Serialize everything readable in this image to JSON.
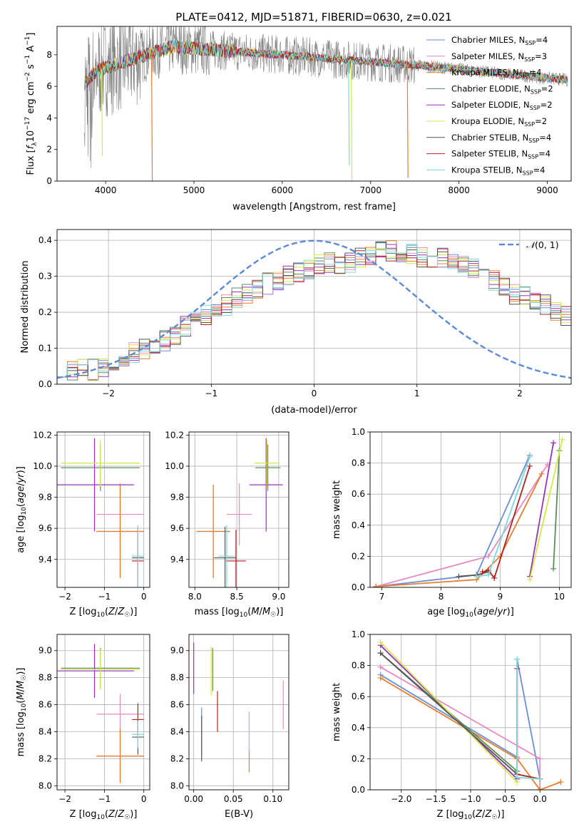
{
  "figure": {
    "title": "PLATE=0412, MJD=51871, FIBERID=0630, z=0.021",
    "model_colors": {
      "Chabrier MILES": "#6a8fd6",
      "Salpeter MILES": "#e78ac3",
      "Kroupa MILES": "#e87d2c",
      "Chabrier ELODIE": "#5b8f5b",
      "Salpeter ELODIE": "#9933bb",
      "Kroupa ELODIE": "#d4e84a",
      "Chabrier STELIB": "#555555",
      "Salpeter STELIB": "#b22222",
      "Kroupa STELIB": "#7fd8d8"
    },
    "data_color": "#808080"
  },
  "chart_data": [
    {
      "id": "spectrum",
      "type": "line",
      "xlabel": "wavelength [Angstrom, rest frame]",
      "ylabel": "Flux [f_λ 10^-17 erg cm^-2 s^-1 A^-1]",
      "xlim": [
        3450,
        9270
      ],
      "ylim": [
        0,
        9.8
      ],
      "xticks": [
        4000,
        5000,
        6000,
        7000,
        8000,
        9000
      ],
      "yticks": [
        0,
        2,
        4,
        6,
        8
      ],
      "grid": false,
      "legend_position": "top-right",
      "legend": [
        {
          "text": "Chabrier MILES, N",
          "sub": "SSP",
          "suffix": "=4"
        },
        {
          "text": "Salpeter MILES, N",
          "sub": "SSP",
          "suffix": "=3"
        },
        {
          "text": "Kroupa MILES, N",
          "sub": "SSP",
          "suffix": "=4"
        },
        {
          "text": "Chabrier ELODIE, N",
          "sub": "SSP",
          "suffix": "=2"
        },
        {
          "text": "Salpeter ELODIE, N",
          "sub": "SSP",
          "suffix": "=2"
        },
        {
          "text": "Kroupa ELODIE, N",
          "sub": "SSP",
          "suffix": "=2"
        },
        {
          "text": "Chabrier STELIB, N",
          "sub": "SSP",
          "suffix": "=4"
        },
        {
          "text": "Salpeter STELIB, N",
          "sub": "SSP",
          "suffix": "=4"
        },
        {
          "text": "Kroupa STELIB, N",
          "sub": "SSP",
          "suffix": "=4"
        }
      ],
      "data_range": [
        3760,
        9230
      ],
      "model_dips": [
        {
          "model": "Kroupa MILES",
          "x": 4520,
          "y": 0
        },
        {
          "model": "Kroupa STELIB",
          "x": 6750,
          "y": 1.0
        },
        {
          "model": "Kroupa ELODIE",
          "x": 6780,
          "y": 0
        },
        {
          "model": "Kroupa MILES",
          "x": 7415,
          "y": 0.2
        },
        {
          "model": "Kroupa ELODIE",
          "x": 3955,
          "y": 1.6
        }
      ]
    },
    {
      "id": "residuals",
      "type": "step",
      "xlabel": "(data-model)/error",
      "ylabel": "Normed distribution",
      "xlim": [
        -2.5,
        2.5
      ],
      "ylim": [
        0,
        0.43
      ],
      "xticks": [
        -2,
        -1,
        0,
        1,
        2
      ],
      "yticks": [
        0.0,
        0.1,
        0.2,
        0.3,
        0.4
      ],
      "grid": true,
      "legend_position": "top-right",
      "legend": "N(0, 1)",
      "bin_width": 0.1,
      "bin_start": -2.5,
      "base_hist": [
        0.05,
        0.04,
        0.04,
        0.04,
        0.05,
        0.06,
        0.08,
        0.09,
        0.1,
        0.11,
        0.12,
        0.14,
        0.16,
        0.18,
        0.19,
        0.21,
        0.22,
        0.24,
        0.25,
        0.26,
        0.28,
        0.29,
        0.3,
        0.31,
        0.32,
        0.33,
        0.34,
        0.33,
        0.34,
        0.35,
        0.36,
        0.37,
        0.37,
        0.37,
        0.36,
        0.35,
        0.35,
        0.35,
        0.34,
        0.33,
        0.32,
        0.31,
        0.29,
        0.27,
        0.25,
        0.25,
        0.23,
        0.22,
        0.2,
        0.19,
        0.17,
        0.16,
        0.14,
        0.12,
        0.1,
        0.09,
        0.08,
        0.07,
        0.06,
        0.05
      ]
    },
    {
      "id": "age-vs-Z",
      "type": "errorbar",
      "xlabel": "Z [log10(Z/Z☉)]",
      "ylabel": "age  [log10(age/yr)]",
      "xlim": [
        -2.2,
        0.15
      ],
      "ylim": [
        9.22,
        10.22
      ],
      "xticks": [
        -2,
        -1,
        0
      ],
      "yticks": [
        9.4,
        9.6,
        9.8,
        10.0,
        10.2
      ],
      "grid": true,
      "points": [
        {
          "model": "Chabrier MILES",
          "x": -0.6,
          "xerr": 0.6,
          "y": 9.58,
          "yerr": 0.3
        },
        {
          "model": "Salpeter MILES",
          "x": -0.6,
          "xerr": 0.6,
          "y": 9.69,
          "yerr": 0.2
        },
        {
          "model": "Kroupa MILES",
          "x": -0.6,
          "xerr": 0.6,
          "y": 9.58,
          "yerr": 0.3
        },
        {
          "model": "Chabrier ELODIE",
          "x": -1.1,
          "xerr": 1.0,
          "y": 9.99,
          "yerr": 0.15
        },
        {
          "model": "Salpeter ELODIE",
          "x": -1.25,
          "xerr": 1.0,
          "y": 9.88,
          "yerr": 0.3
        },
        {
          "model": "Kroupa ELODIE",
          "x": -1.1,
          "xerr": 1.0,
          "y": 10.02,
          "yerr": 0.15
        },
        {
          "model": "Chabrier STELIB",
          "x": -0.15,
          "xerr": 0.15,
          "y": 9.41,
          "yerr": 0.2
        },
        {
          "model": "Salpeter STELIB",
          "x": -0.15,
          "xerr": 0.15,
          "y": 9.39,
          "yerr": 0.2
        },
        {
          "model": "Kroupa STELIB",
          "x": -0.15,
          "xerr": 0.15,
          "y": 9.42,
          "yerr": 0.2
        }
      ]
    },
    {
      "id": "age-vs-mass",
      "type": "errorbar",
      "xlabel": "mass [log10(M/M☉)]",
      "ylabel": "",
      "xlim": [
        7.93,
        9.12
      ],
      "ylim": [
        9.22,
        10.22
      ],
      "xticks": [
        8.0,
        8.5,
        9.0
      ],
      "yticks": [
        9.4,
        9.6,
        9.8,
        10.0,
        10.2
      ],
      "grid": true,
      "points": [
        {
          "model": "Chabrier MILES",
          "x": 8.22,
          "xerr": 0.2,
          "y": 9.58,
          "yerr": 0.3
        },
        {
          "model": "Salpeter MILES",
          "x": 8.53,
          "xerr": 0.15,
          "y": 9.69,
          "yerr": 0.2
        },
        {
          "model": "Kroupa MILES",
          "x": 8.22,
          "xerr": 0.2,
          "y": 9.58,
          "yerr": 0.3
        },
        {
          "model": "Chabrier ELODIE",
          "x": 8.87,
          "xerr": 0.15,
          "y": 9.99,
          "yerr": 0.15
        },
        {
          "model": "Salpeter ELODIE",
          "x": 8.85,
          "xerr": 0.2,
          "y": 9.88,
          "yerr": 0.3
        },
        {
          "model": "Kroupa ELODIE",
          "x": 8.86,
          "xerr": 0.15,
          "y": 10.02,
          "yerr": 0.15
        },
        {
          "model": "Chabrier STELIB",
          "x": 8.36,
          "xerr": 0.13,
          "y": 9.41,
          "yerr": 0.2
        },
        {
          "model": "Salpeter STELIB",
          "x": 8.49,
          "xerr": 0.12,
          "y": 9.39,
          "yerr": 0.2
        },
        {
          "model": "Kroupa STELIB",
          "x": 8.38,
          "xerr": 0.1,
          "y": 9.42,
          "yerr": 0.2
        }
      ]
    },
    {
      "id": "mass-weight-vs-age",
      "type": "line",
      "xlabel": "age  [log10(age/yr)]",
      "ylabel": "mass weight",
      "xlim": [
        6.8,
        10.2
      ],
      "ylim": [
        0,
        1.0
      ],
      "xticks": [
        7,
        8,
        9,
        10
      ],
      "yticks": [
        0.0,
        0.2,
        0.4,
        0.6,
        0.8,
        1.0
      ],
      "grid": true,
      "series": [
        {
          "model": "Chabrier MILES",
          "x": [
            6.9,
            8.6,
            9.5
          ],
          "y": [
            0.005,
            0.08,
            0.85
          ]
        },
        {
          "model": "Salpeter MILES",
          "x": [
            6.9,
            8.8,
            9.8
          ],
          "y": [
            0.005,
            0.2,
            0.79
          ]
        },
        {
          "model": "Kroupa MILES",
          "x": [
            6.9,
            8.6,
            9.0,
            9.7
          ],
          "y": [
            0.005,
            0.05,
            0.2,
            0.73
          ]
        },
        {
          "model": "Chabrier ELODIE",
          "x": [
            9.9,
            10.0
          ],
          "y": [
            0.12,
            0.88
          ]
        },
        {
          "model": "Salpeter ELODIE",
          "x": [
            9.5,
            9.9
          ],
          "y": [
            0.07,
            0.93
          ]
        },
        {
          "model": "Kroupa ELODIE",
          "x": [
            9.5,
            10.05
          ],
          "y": [
            0.05,
            0.95
          ]
        },
        {
          "model": "Chabrier STELIB",
          "x": [
            8.3,
            8.6,
            8.8
          ],
          "y": [
            0.07,
            0.08,
            0.1
          ]
        },
        {
          "model": "Salpeter STELIB",
          "x": [
            8.7,
            8.8,
            8.9,
            9.5
          ],
          "y": [
            0.1,
            0.11,
            0.06,
            0.78
          ]
        },
        {
          "model": "Kroupa STELIB",
          "x": [
            8.6,
            8.8,
            9.5
          ],
          "y": [
            0.07,
            0.08,
            0.84
          ]
        }
      ]
    },
    {
      "id": "mass-vs-Z",
      "type": "errorbar",
      "xlabel": "Z [log10(Z/Z☉)]",
      "ylabel": "mass [log10(M/M☉)]",
      "xlim": [
        -2.2,
        0.15
      ],
      "ylim": [
        7.97,
        9.12
      ],
      "xticks": [
        -2,
        -1,
        0
      ],
      "yticks": [
        8.0,
        8.2,
        8.4,
        8.6,
        8.8,
        9.0
      ],
      "grid": true,
      "points": [
        {
          "model": "Chabrier MILES",
          "x": -0.6,
          "xerr": 0.6,
          "y": 8.22,
          "yerr": 0.2
        },
        {
          "model": "Salpeter MILES",
          "x": -0.6,
          "xerr": 0.6,
          "y": 8.53,
          "yerr": 0.15
        },
        {
          "model": "Kroupa MILES",
          "x": -0.6,
          "xerr": 0.6,
          "y": 8.22,
          "yerr": 0.2
        },
        {
          "model": "Chabrier ELODIE",
          "x": -1.1,
          "xerr": 1.0,
          "y": 8.87,
          "yerr": 0.15
        },
        {
          "model": "Salpeter ELODIE",
          "x": -1.25,
          "xerr": 1.0,
          "y": 8.85,
          "yerr": 0.2
        },
        {
          "model": "Kroupa ELODIE",
          "x": -1.1,
          "xerr": 1.0,
          "y": 8.86,
          "yerr": 0.15
        },
        {
          "model": "Chabrier STELIB",
          "x": -0.15,
          "xerr": 0.15,
          "y": 8.36,
          "yerr": 0.13
        },
        {
          "model": "Salpeter STELIB",
          "x": -0.15,
          "xerr": 0.15,
          "y": 8.49,
          "yerr": 0.12
        },
        {
          "model": "Kroupa STELIB",
          "x": -0.15,
          "xerr": 0.15,
          "y": 8.38,
          "yerr": 0.1
        }
      ]
    },
    {
      "id": "mass-vs-ebv",
      "type": "errorbar",
      "xlabel": "E(B-V)",
      "ylabel": "",
      "xlim": [
        -0.006,
        0.12
      ],
      "ylim": [
        7.97,
        9.12
      ],
      "xticks": [
        0.0,
        0.05,
        0.1
      ],
      "yticks": [
        8.0,
        8.2,
        8.4,
        8.6,
        8.8,
        9.0
      ],
      "grid": true,
      "points": [
        {
          "model": "Chabrier MILES",
          "x": 0.01,
          "xerr": 0,
          "y": 8.4,
          "yerr": 0.18
        },
        {
          "model": "Salpeter MILES",
          "x": 0.113,
          "xerr": 0,
          "y": 8.6,
          "yerr": 0.18
        },
        {
          "model": "Kroupa MILES",
          "x": 0.07,
          "xerr": 0,
          "y": 8.32,
          "yerr": 0.22
        },
        {
          "model": "Chabrier ELODIE",
          "x": 0.024,
          "xerr": 0,
          "y": 8.86,
          "yerr": 0.16
        },
        {
          "model": "Salpeter ELODIE",
          "x": 0.0,
          "xerr": 0,
          "y": 8.87,
          "yerr": 0.19
        },
        {
          "model": "Kroupa ELODIE",
          "x": 0.022,
          "xerr": 0,
          "y": 8.85,
          "yerr": 0.18
        },
        {
          "model": "Chabrier STELIB",
          "x": 0.01,
          "xerr": 0,
          "y": 8.35,
          "yerr": 0.17
        },
        {
          "model": "Salpeter STELIB",
          "x": 0.03,
          "xerr": 0,
          "y": 8.55,
          "yerr": 0.15
        },
        {
          "model": "Kroupa STELIB",
          "x": 0.07,
          "xerr": 0,
          "y": 8.4,
          "yerr": 0.15
        }
      ]
    },
    {
      "id": "mass-weight-vs-Z",
      "type": "line",
      "xlabel": "Z [log10(Z/Z☉)]",
      "ylabel": "mass weight",
      "xlim": [
        -2.45,
        0.45
      ],
      "ylim": [
        0,
        1.0
      ],
      "xticks": [
        -2.0,
        -1.5,
        -1.0,
        -0.5,
        0.0
      ],
      "yticks": [
        0.0,
        0.2,
        0.4,
        0.6,
        0.8,
        1.0
      ],
      "grid": true,
      "series": [
        {
          "model": "Chabrier MILES",
          "x": [
            -2.3,
            -0.33,
            -0.33,
            0.0
          ],
          "y": [
            0.74,
            0.21,
            0.84,
            0.07
          ]
        },
        {
          "model": "Salpeter MILES",
          "x": [
            -2.3,
            0.0,
            0.0
          ],
          "y": [
            0.79,
            0.2,
            0.0
          ]
        },
        {
          "model": "Kroupa MILES",
          "x": [
            -2.3,
            -0.33,
            0.0,
            0.3
          ],
          "y": [
            0.72,
            0.2,
            0.0,
            0.05
          ]
        },
        {
          "model": "Chabrier ELODIE",
          "x": [
            -2.3,
            -0.33
          ],
          "y": [
            0.88,
            0.12
          ]
        },
        {
          "model": "Salpeter ELODIE",
          "x": [
            -2.3,
            -0.33
          ],
          "y": [
            0.93,
            0.07
          ]
        },
        {
          "model": "Kroupa ELODIE",
          "x": [
            -2.3,
            -0.33
          ],
          "y": [
            0.95,
            0.05
          ]
        },
        {
          "model": "Chabrier STELIB",
          "x": [
            -2.3,
            -0.33,
            0.0
          ],
          "y": [
            0.88,
            0.1,
            0.07
          ]
        },
        {
          "model": "Salpeter STELIB",
          "x": [
            -0.33,
            -0.33,
            0.0
          ],
          "y": [
            0.78,
            0.1,
            0.07
          ]
        },
        {
          "model": "Kroupa STELIB",
          "x": [
            -0.33,
            -0.33,
            0.0
          ],
          "y": [
            0.84,
            0.08,
            0.07
          ]
        }
      ]
    }
  ]
}
